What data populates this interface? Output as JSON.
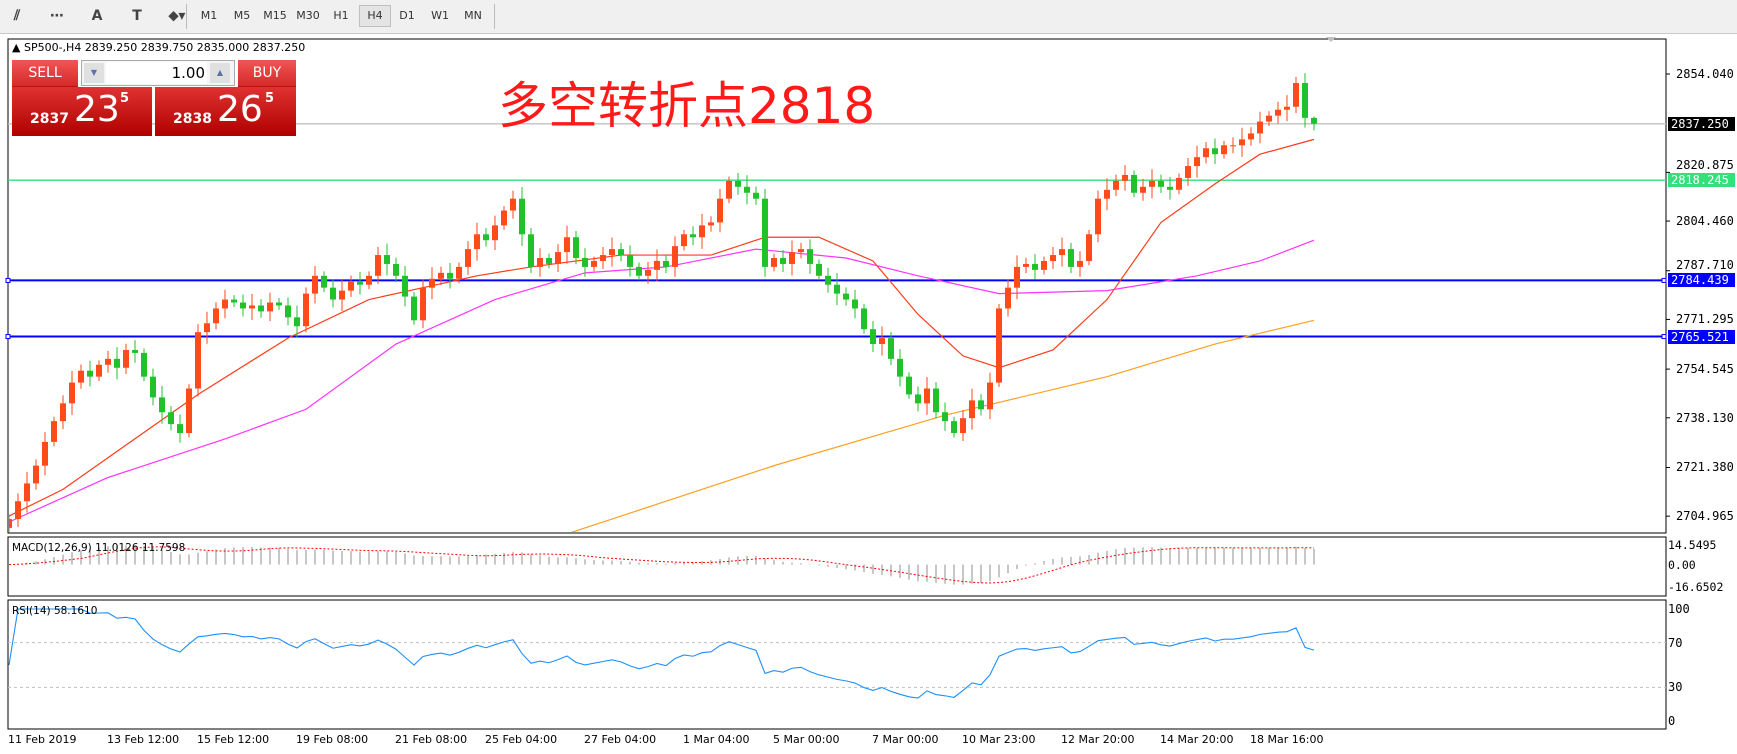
{
  "toolbar": {
    "tools": [
      {
        "name": "fibonacci-expansion-icon",
        "glyph": "⫽"
      },
      {
        "name": "fibonacci-fan-icon",
        "glyph": "⋯"
      },
      {
        "name": "text-icon",
        "glyph": "A"
      },
      {
        "name": "text-label-icon",
        "glyph": "T"
      },
      {
        "name": "arrows-icon",
        "glyph": "⬥▾"
      }
    ],
    "timeframes": [
      "M1",
      "M5",
      "M15",
      "M30",
      "H1",
      "H4",
      "D1",
      "W1",
      "MN"
    ],
    "active_timeframe": "H4"
  },
  "symbol_info": "SP500-,H4  2839.250 2839.750 2835.000 2837.250",
  "trade_panel": {
    "sell_label": "SELL",
    "buy_label": "BUY",
    "lot": "1.00",
    "sell_small": "2837",
    "sell_big": "23",
    "sell_sup": "5",
    "buy_small": "2838",
    "buy_big": "26",
    "buy_sup": "5"
  },
  "annotation": "多空转折点2818",
  "colors": {
    "bull": "#ff4a1a",
    "bear": "#21c12b",
    "ma_fast": "#ff3b1a",
    "ma_mid": "#ff33ff",
    "ma_slow": "#ffa020",
    "support_line": "#0000ff",
    "pivot_line": "#33e07a",
    "rsi": "#1e90ff",
    "macd_signal": "#ff0000",
    "macd_hist": "#b4b4b4"
  },
  "chart_data": {
    "type": "candlestick",
    "symbol": "SP500-",
    "timeframe": "H4",
    "last_bar": {
      "open": 2839.25,
      "high": 2839.75,
      "low": 2835.0,
      "close": 2837.25
    },
    "y_ticks": [
      "2854.040",
      "2820.875",
      "2804.460",
      "2787.710",
      "2771.295",
      "2754.545",
      "2738.130",
      "2721.380",
      "2704.965"
    ],
    "ylim": [
      2700.5,
      2865
    ],
    "x_tick_labels": [
      "11 Feb 2019",
      "13 Feb 12:00",
      "15 Feb 12:00",
      "19 Feb 08:00",
      "21 Feb 08:00",
      "25 Feb 04:00",
      "27 Feb 04:00",
      "1 Mar 04:00",
      "5 Mar 00:00",
      "7 Mar 00:00",
      "10 Mar 23:00",
      "12 Mar 20:00",
      "14 Mar 20:00",
      "18 Mar 16:00"
    ],
    "x_tick_bar_index": [
      0,
      11,
      21,
      32,
      43,
      53,
      64,
      75,
      85,
      96,
      106,
      117,
      128,
      138
    ],
    "close": [
      2704,
      2710,
      2716,
      2722,
      2730,
      2737,
      2743,
      2750,
      2754,
      2752,
      2756,
      2758,
      2755,
      2761,
      2760,
      2752,
      2745,
      2740,
      2736,
      2733,
      2748,
      2767,
      2770,
      2775,
      2778,
      2777,
      2775,
      2776,
      2774,
      2777,
      2776,
      2772,
      2769,
      2780,
      2786,
      2782,
      2778,
      2781,
      2784,
      2783,
      2786,
      2793,
      2790,
      2786,
      2779,
      2771,
      2782,
      2785,
      2787,
      2785,
      2789,
      2795,
      2800,
      2798,
      2803,
      2808,
      2812,
      2800,
      2789,
      2792,
      2790,
      2794,
      2799,
      2792,
      2789,
      2791,
      2793,
      2795,
      2793,
      2789,
      2786,
      2788,
      2791,
      2789,
      2796,
      2800,
      2799,
      2803,
      2804,
      2812,
      2818,
      2816,
      2814,
      2812,
      2789,
      2792,
      2790,
      2794,
      2795,
      2790,
      2786,
      2783,
      2780,
      2778,
      2775,
      2768,
      2763,
      2765,
      2758,
      2752,
      2746,
      2743,
      2748,
      2740,
      2737,
      2733,
      2738,
      2744,
      2741,
      2750,
      2775,
      2782,
      2789,
      2790,
      2788,
      2791,
      2793,
      2795,
      2789,
      2791,
      2800,
      2812,
      2815,
      2818,
      2820,
      2814,
      2816,
      2818,
      2816,
      2815,
      2819,
      2823,
      2826,
      2829,
      2827,
      2830,
      2830,
      2832,
      2834,
      2838,
      2840,
      2842,
      2843,
      2851,
      2839.25,
      2837.25
    ],
    "horizontal_lines": [
      {
        "label": "2837.250",
        "value": 2837.25,
        "kind": "current-price",
        "color": "#000000"
      },
      {
        "label": "2818.245",
        "value": 2818.245,
        "kind": "pivot",
        "color": "#33e07a"
      },
      {
        "label": "2784.439",
        "value": 2784.439,
        "kind": "support",
        "color": "#0000ff"
      },
      {
        "label": "2765.521",
        "value": 2765.521,
        "kind": "support",
        "color": "#0000ff"
      }
    ],
    "moving_averages": [
      {
        "color": "#ff3b1a",
        "points": [
          [
            0,
            2705
          ],
          [
            6,
            2714
          ],
          [
            21,
            2746
          ],
          [
            31,
            2765
          ],
          [
            40,
            2778
          ],
          [
            52,
            2786
          ],
          [
            58,
            2789
          ],
          [
            68,
            2793
          ],
          [
            78,
            2793
          ],
          [
            84,
            2799
          ],
          [
            90,
            2799
          ],
          [
            96,
            2791
          ],
          [
            101,
            2773
          ],
          [
            106,
            2759
          ],
          [
            110,
            2755
          ],
          [
            116,
            2761
          ],
          [
            122,
            2778
          ],
          [
            128,
            2804
          ],
          [
            134,
            2817
          ],
          [
            139,
            2827
          ],
          [
            145,
            2832
          ]
        ]
      },
      {
        "color": "#ff33ff",
        "points": [
          [
            0,
            2703
          ],
          [
            11,
            2718
          ],
          [
            24,
            2731
          ],
          [
            33,
            2741
          ],
          [
            43,
            2763
          ],
          [
            54,
            2778
          ],
          [
            64,
            2787
          ],
          [
            73,
            2789
          ],
          [
            83,
            2795
          ],
          [
            93,
            2792
          ],
          [
            101,
            2786
          ],
          [
            110,
            2780
          ],
          [
            122,
            2781
          ],
          [
            132,
            2786
          ],
          [
            139,
            2791
          ],
          [
            145,
            2798
          ]
        ]
      },
      {
        "color": "#ffa020",
        "points": [
          [
            62,
            2699
          ],
          [
            85,
            2722
          ],
          [
            104,
            2739
          ],
          [
            122,
            2752
          ],
          [
            134,
            2763
          ],
          [
            145,
            2771
          ]
        ]
      }
    ],
    "macd": {
      "label": "MACD(12,26,9) 11.0126 11.7598",
      "y_ticks": [
        "14.5495",
        "0.00",
        "-16.6502"
      ],
      "ylim": [
        -16.6502,
        14.5495
      ]
    },
    "rsi": {
      "label": "RSI(14) 58.1610",
      "y_ticks": [
        "100",
        "70",
        "30",
        "0"
      ],
      "levels": [
        70,
        30
      ],
      "ylim": [
        0,
        100
      ]
    }
  }
}
